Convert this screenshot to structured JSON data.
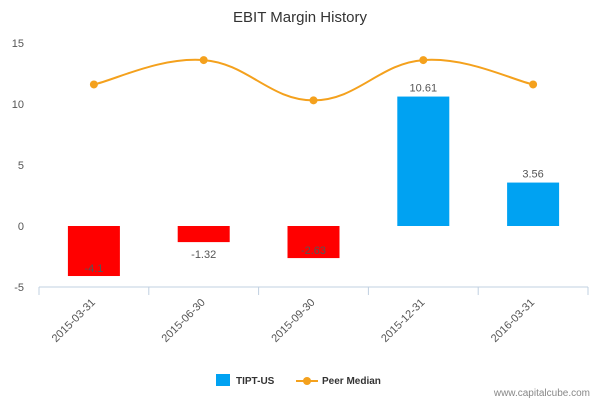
{
  "chart_data": {
    "type": "bar",
    "title": "EBIT Margin History",
    "categories": [
      "2015-03-31",
      "2015-06-30",
      "2015-09-30",
      "2015-12-31",
      "2016-03-31"
    ],
    "series": [
      {
        "name": "TIPT-US",
        "type": "bar",
        "values": [
          -4.1,
          -1.32,
          -2.63,
          10.61,
          3.56
        ],
        "data_labels": [
          "-4.1",
          "-1.32",
          "-2.63",
          "10.61",
          "3.56"
        ],
        "color": "#00a2f2",
        "negative_color": "#ff0000"
      },
      {
        "name": "Peer Median",
        "type": "line",
        "values": [
          11.6,
          13.6,
          10.3,
          13.6,
          11.6
        ],
        "color": "#f4a11d"
      }
    ],
    "ylim": [
      -5,
      15
    ],
    "yticks": [
      "-5",
      "0",
      "5",
      "10",
      "15"
    ],
    "legend": "bottom-center",
    "grid": false
  },
  "credit": "www.capitalcube.com"
}
